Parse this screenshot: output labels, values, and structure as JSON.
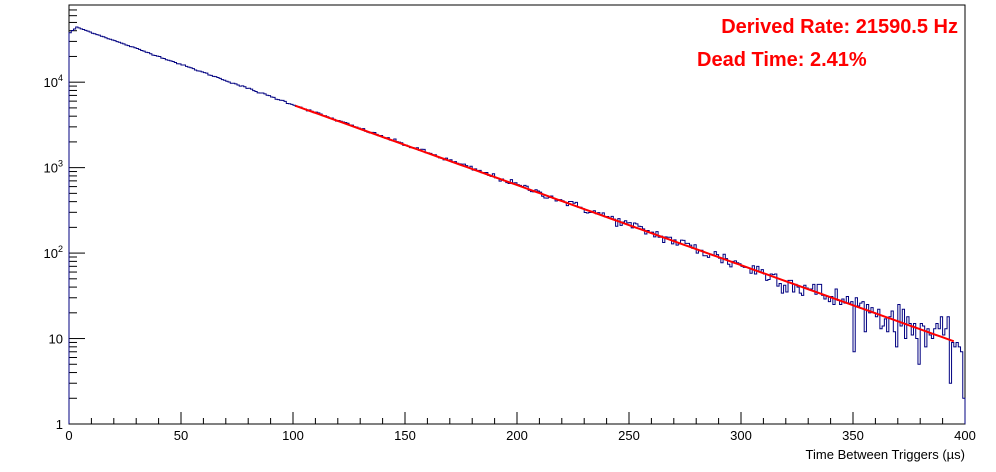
{
  "chart_data": {
    "type": "histogram",
    "xlabel": "Time Between Triggers (µs)",
    "ylabel": "",
    "xlim": [
      0,
      400
    ],
    "ylim": [
      1,
      80000
    ],
    "yscale": "log",
    "x_ticks": [
      "0",
      "50",
      "100",
      "150",
      "200",
      "250",
      "300",
      "350",
      "400"
    ],
    "y_ticks": [
      {
        "base": "1",
        "exp": ""
      },
      {
        "base": "10",
        "exp": ""
      },
      {
        "base": "10",
        "exp": "2"
      },
      {
        "base": "10",
        "exp": "3"
      },
      {
        "base": "10",
        "exp": "4"
      }
    ],
    "histogram": {
      "bin_width_us": 1,
      "rate_hz": 21590.5,
      "peak_counts": 44000,
      "shape": "exponential decay",
      "endpoints": [
        {
          "x": 0,
          "y": 38000
        },
        {
          "x": 3,
          "y": 44000
        },
        {
          "x": 100,
          "y": 5200
        },
        {
          "x": 200,
          "y": 600
        },
        {
          "x": 300,
          "y": 70
        },
        {
          "x": 350,
          "y": 24
        },
        {
          "x": 399,
          "y": 2
        }
      ]
    },
    "fit": {
      "range": [
        101,
        395
      ],
      "type": "exponential"
    },
    "colors": {
      "histogram": "#000080",
      "fit": "#ff0000",
      "annotation": "#ff0000"
    }
  },
  "annotations": {
    "rate_label": "Derived Rate: 21590.5 Hz",
    "dead_time_label": "Dead Time: 2.41%"
  }
}
